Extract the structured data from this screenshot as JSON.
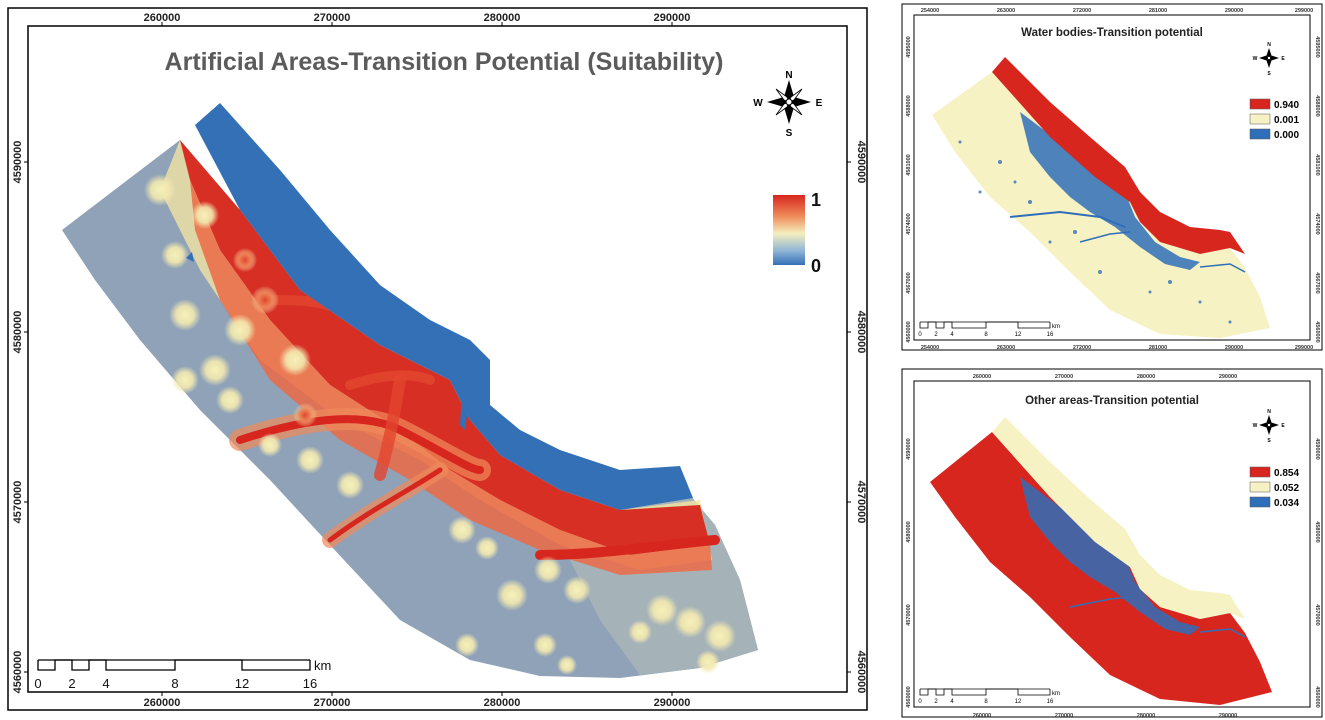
{
  "main": {
    "title": "Artificial Areas-Transition Potential (Suitability)",
    "x_ticks": [
      "260000",
      "270000",
      "280000",
      "290000"
    ],
    "y_ticks": [
      "4590000",
      "4580000",
      "4570000",
      "4560000"
    ],
    "legend": {
      "max": "1",
      "min": "0"
    },
    "scale": {
      "labels": [
        "0",
        "2",
        "4",
        "8",
        "12",
        "16"
      ],
      "unit": "km"
    },
    "compass": {
      "n": "N",
      "s": "S",
      "e": "E",
      "w": "W"
    },
    "colors": {
      "water": "#3470b6",
      "high": "#d7261e",
      "low": "#8fa2b8",
      "mid": "#f2eeb7"
    }
  },
  "water": {
    "title": "Water bodies-Transition potential",
    "x_ticks": [
      "254000",
      "263000",
      "272000",
      "281000",
      "290000",
      "299000"
    ],
    "y_ticks": [
      "4595000",
      "4588000",
      "4581000",
      "4574000",
      "4567000",
      "4560000"
    ],
    "legend": [
      {
        "label": "0.940",
        "color": "#d7261e"
      },
      {
        "label": "0.001",
        "color": "#f6f2c3"
      },
      {
        "label": "0.000",
        "color": "#2f6fba"
      }
    ],
    "scale": {
      "labels": [
        "0",
        "2",
        "4",
        "8",
        "12",
        "16"
      ],
      "unit": "km"
    },
    "compass": {
      "n": "N",
      "s": "S",
      "e": "E",
      "w": "W"
    }
  },
  "other": {
    "title": "Other areas-Transition potential",
    "x_ticks": [
      "260000",
      "270000",
      "280000",
      "290000"
    ],
    "y_ticks": [
      "4590000",
      "4580000",
      "4570000",
      "4560000"
    ],
    "legend": [
      {
        "label": "0.854",
        "color": "#d7261e"
      },
      {
        "label": "0.052",
        "color": "#f6f2c3"
      },
      {
        "label": "0.034",
        "color": "#2f6fba"
      }
    ],
    "scale": {
      "labels": [
        "0",
        "2",
        "4",
        "8",
        "12",
        "16"
      ],
      "unit": "km"
    },
    "compass": {
      "n": "N",
      "s": "S",
      "e": "E",
      "w": "W"
    }
  }
}
